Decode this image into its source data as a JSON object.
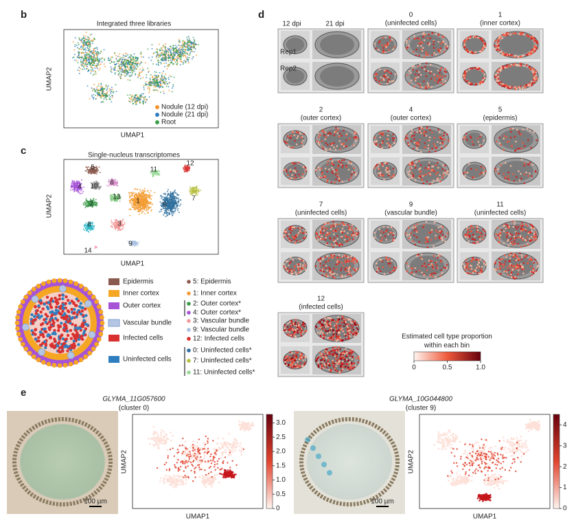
{
  "panel_b": {
    "label": "b",
    "title": "Integrated three libraries",
    "x_label": "UMAP1",
    "y_label": "UMAP2",
    "legend": [
      {
        "name": "Nodule (12 dpi)",
        "color": "#f0952e"
      },
      {
        "name": "Nodule (21 dpi)",
        "color": "#2f7fc0"
      },
      {
        "name": "Root",
        "color": "#3aa04a"
      }
    ]
  },
  "panel_c": {
    "label": "c",
    "title": "Single-nucleus transcriptomes",
    "x_label": "UMAP1",
    "y_label": "UMAP2",
    "clusters": [
      "5",
      "4",
      "10",
      "6",
      "11",
      "12",
      "2",
      "13",
      "1",
      "0",
      "7",
      "8",
      "3",
      "9",
      "14"
    ],
    "cell_types": [
      {
        "name": "Epidermis",
        "color": "#8b5a4e"
      },
      {
        "name": "Inner cortex",
        "color": "#f5a623"
      },
      {
        "name": "Outer cortex",
        "color": "#a653d8"
      },
      {
        "name": "Vascular bundle",
        "color": "#b4c6e4"
      },
      {
        "name": "Infected cells",
        "color": "#d93030"
      },
      {
        "name": "Uninfected cells",
        "color": "#2f7fc0"
      }
    ],
    "cluster_legend": [
      {
        "name": "5: Epidermis",
        "color": "#8b5a4e"
      },
      {
        "name": "1: Inner cortex",
        "color": "#f39c33"
      },
      {
        "name": "2: Outer cortex*",
        "color": "#3a9a4a"
      },
      {
        "name": "4: Outer cortex*",
        "color": "#a653d8"
      },
      {
        "name": "3: Vascular bundle",
        "color": "#f29a9a"
      },
      {
        "name": "9: Vascular bundle",
        "color": "#a8c0e0"
      },
      {
        "name": "12: Infected cells",
        "color": "#d93030"
      },
      {
        "name": "0: Uninfected cells*",
        "color": "#2e6f9e"
      },
      {
        "name": "7: Uninfected cells*",
        "color": "#b7bf3e"
      },
      {
        "name": "11: Uninfected cells*",
        "color": "#96d896"
      }
    ]
  },
  "panel_d": {
    "label": "d",
    "columns": [
      "12 dpi",
      "21 dpi"
    ],
    "rows": [
      "Rep1",
      "Rep2"
    ],
    "tiles": [
      {
        "title": "0",
        "subtitle": "(uninfected cells)"
      },
      {
        "title": "1",
        "subtitle": "(inner cortex)"
      },
      {
        "title": "2",
        "subtitle": "(outer cortex)"
      },
      {
        "title": "4",
        "subtitle": "(outer cortex)"
      },
      {
        "title": "5",
        "subtitle": "(epidermis)"
      },
      {
        "title": "7",
        "subtitle": "(uninfected cells)"
      },
      {
        "title": "9",
        "subtitle": "(vascular bundle)"
      },
      {
        "title": "11",
        "subtitle": "(uninfected cells)"
      },
      {
        "title": "12",
        "subtitle": "(infected cells)"
      }
    ],
    "colorbar_title": [
      "Estimated cell type proportion",
      "within each bin"
    ],
    "colorbar_ticks": [
      "0",
      "0.5",
      "1.0"
    ]
  },
  "panel_e": {
    "label": "e",
    "genes": [
      {
        "name": "GLYMA_11G057600",
        "cluster": "(cluster 0)",
        "scale_bar": "100 µm",
        "x_label": "UMAP1",
        "y_label": "UMAP2",
        "colorbar_ticks": [
          "0",
          "0.5",
          "1.0",
          "1.5",
          "2.0",
          "2.5",
          "3.0"
        ]
      },
      {
        "name": "GLYMA_10G044800",
        "cluster": "(cluster 9)",
        "scale_bar": "100 µm",
        "x_label": "UMAP1",
        "y_label": "UMAP2",
        "colorbar_ticks": [
          "0",
          "1",
          "2",
          "3",
          "4"
        ]
      }
    ]
  }
}
